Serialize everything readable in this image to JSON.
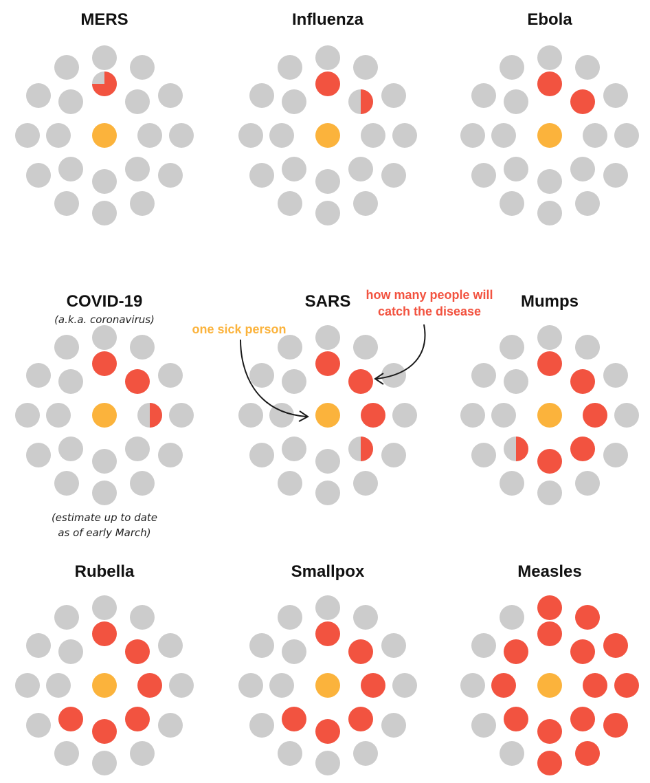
{
  "colors": {
    "healthy": "#cccccc",
    "infected": "#f25340",
    "source": "#fbb33c",
    "text": "#111111"
  },
  "annotations": {
    "one_sick_person": "one sick person",
    "how_many_line1": "how many people will",
    "how_many_line2": "catch the disease"
  },
  "diseases": [
    {
      "name": "MERS",
      "infected": 0.75,
      "layout": "a"
    },
    {
      "name": "Influenza",
      "infected": 1.5,
      "layout": "b"
    },
    {
      "name": "Ebola",
      "infected": 2,
      "layout": "b"
    },
    {
      "name": "COVID-19",
      "subtitle": "(a.k.a. coronavirus)",
      "note_line1": "(estimate up to date",
      "note_line2": "as of early March)",
      "infected": 2.5,
      "layout": "a"
    },
    {
      "name": "SARS",
      "infected": 3.5,
      "layout": "b"
    },
    {
      "name": "Mumps",
      "infected": 5.5,
      "layout": "b"
    },
    {
      "name": "Rubella",
      "infected": 6,
      "layout": "a"
    },
    {
      "name": "Smallpox",
      "infected": 6,
      "layout": "b"
    },
    {
      "name": "Measles",
      "infected": 15,
      "layout": "b"
    }
  ]
}
